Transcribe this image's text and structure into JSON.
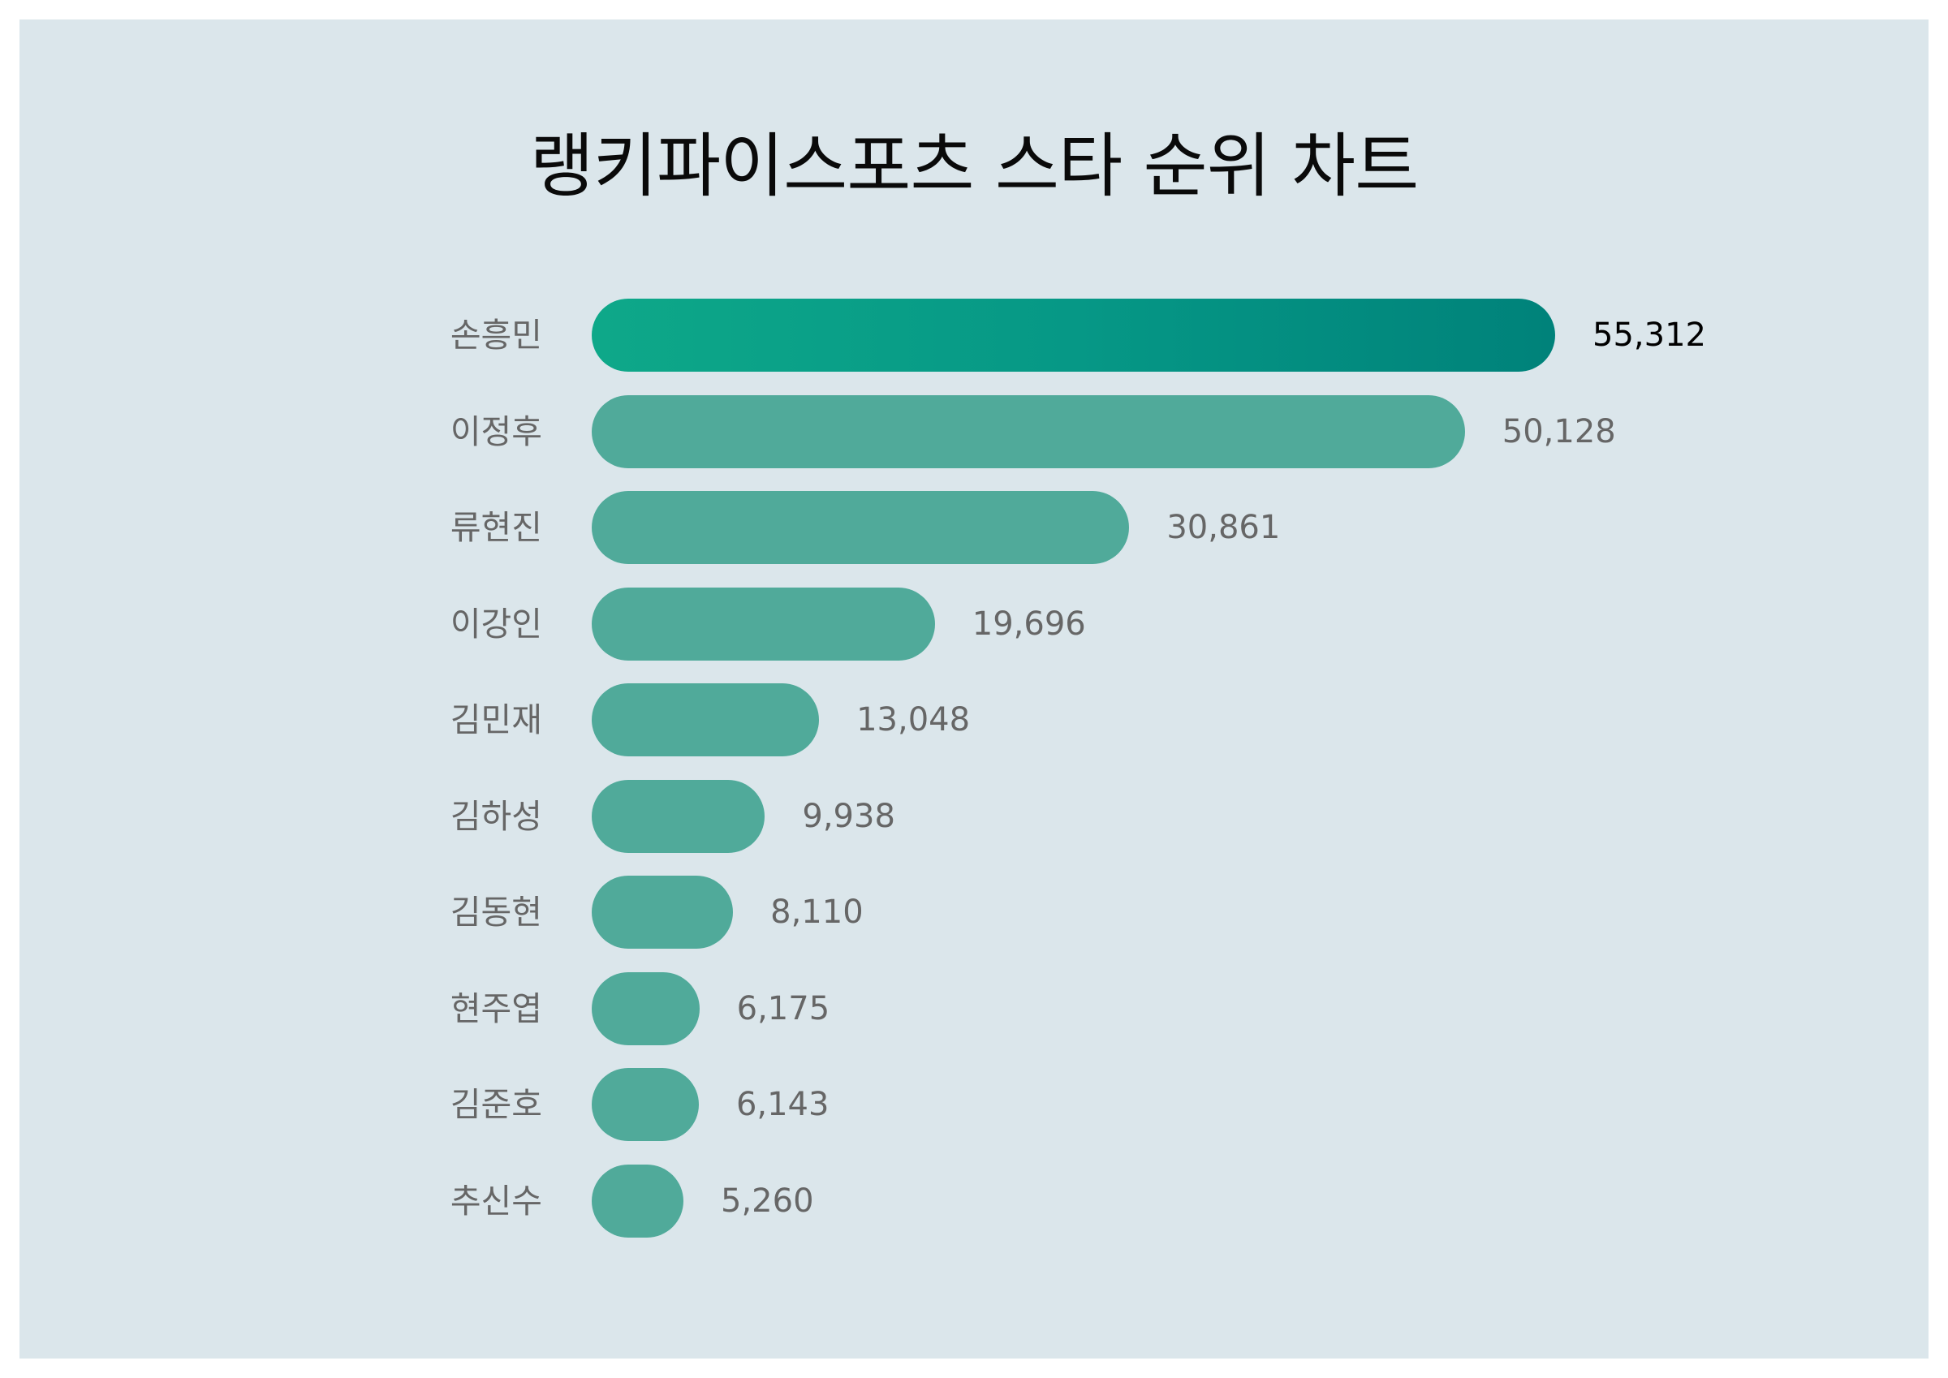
{
  "title": "랭키파이스포츠 스타 순위 차트",
  "colors": {
    "background": "#dbe6eb",
    "bar": "#50aa9a",
    "bar_top_gradient_start": "#0ea889",
    "bar_top_gradient_end": "#00827a",
    "label": "#666666",
    "top_value": "#000000",
    "title": "#0a0a0a"
  },
  "rows": [
    {
      "name": "손흥민",
      "value": 55312,
      "value_label": "55,312"
    },
    {
      "name": "이정후",
      "value": 50128,
      "value_label": "50,128"
    },
    {
      "name": "류현진",
      "value": 30861,
      "value_label": "30,861"
    },
    {
      "name": "이강인",
      "value": 19696,
      "value_label": "19,696"
    },
    {
      "name": "김민재",
      "value": 13048,
      "value_label": "13,048"
    },
    {
      "name": "김하성",
      "value": 9938,
      "value_label": "9,938"
    },
    {
      "name": "김동현",
      "value": 8110,
      "value_label": "8,110"
    },
    {
      "name": "현주엽",
      "value": 6175,
      "value_label": "6,175"
    },
    {
      "name": "김준호",
      "value": 6143,
      "value_label": "6,143"
    },
    {
      "name": "추신수",
      "value": 5260,
      "value_label": "5,260"
    }
  ],
  "chart_data": {
    "type": "bar",
    "orientation": "horizontal",
    "title": "랭키파이스포츠 스타 순위 차트",
    "categories": [
      "손흥민",
      "이정후",
      "류현진",
      "이강인",
      "김민재",
      "김하성",
      "김동현",
      "현주엽",
      "김준호",
      "추신수"
    ],
    "values": [
      55312,
      50128,
      30861,
      19696,
      13048,
      9938,
      8110,
      6175,
      6143,
      5260
    ],
    "xlabel": "",
    "ylabel": "",
    "grid": false,
    "legend": null,
    "data_labels": true,
    "highlight_first": true
  }
}
